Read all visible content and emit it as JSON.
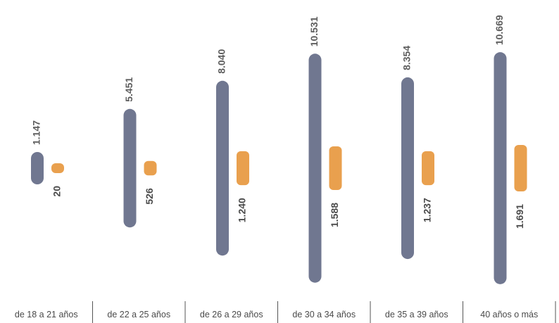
{
  "chart_data": {
    "type": "bar",
    "categories": [
      "de 18 a 21 años",
      "de 22 a 25 años",
      "de 26 a 29 años",
      "de 30 a 34 años",
      "de 35 a 39 años",
      "40 años o más"
    ],
    "series": [
      {
        "values": [
          1147,
          5451,
          8040,
          10531,
          8354,
          10669
        ],
        "labels": [
          "1.147",
          "5.451",
          "8.040",
          "10.531",
          "8.354",
          "10.669"
        ],
        "color": "#707790"
      },
      {
        "values": [
          20,
          526,
          1240,
          1588,
          1237,
          1691
        ],
        "labels": [
          "20",
          "526",
          "1.240",
          "1.588",
          "1.237",
          "1.691"
        ],
        "color": "#E9A04E"
      }
    ],
    "layout_note": "bars centered on a common baseline, value labels rotated vertically"
  }
}
